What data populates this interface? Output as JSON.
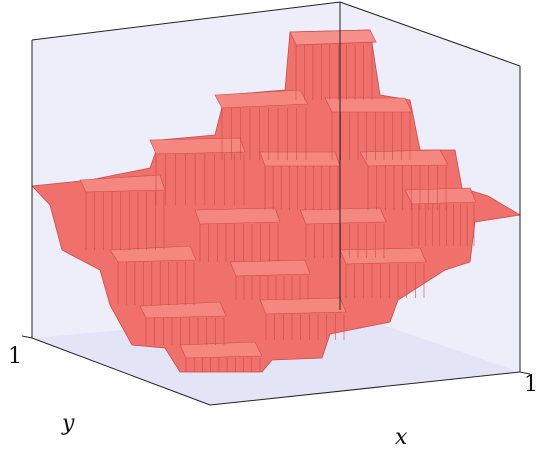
{
  "chart_data": {
    "type": "surface-3d",
    "title": "",
    "xlabel": "x",
    "ylabel": "y",
    "x_tick_labels": [
      "1"
    ],
    "y_tick_labels": [
      "1"
    ],
    "grid": false,
    "box": true,
    "colors": {
      "surface": "#f0706b",
      "surface_edge": "#c94c48",
      "axes_fill": "#eeeefb",
      "box_line": "#222222"
    },
    "description_levels": [
      {
        "level": 0,
        "role": "outer flat border"
      },
      {
        "level": 1,
        "role": "terraced honeycomb steps"
      },
      {
        "level": 2,
        "role": "terraced honeycomb steps"
      },
      {
        "level": 3,
        "role": "terraced honeycomb steps"
      },
      {
        "level": 4,
        "role": "highest plateau"
      }
    ]
  }
}
